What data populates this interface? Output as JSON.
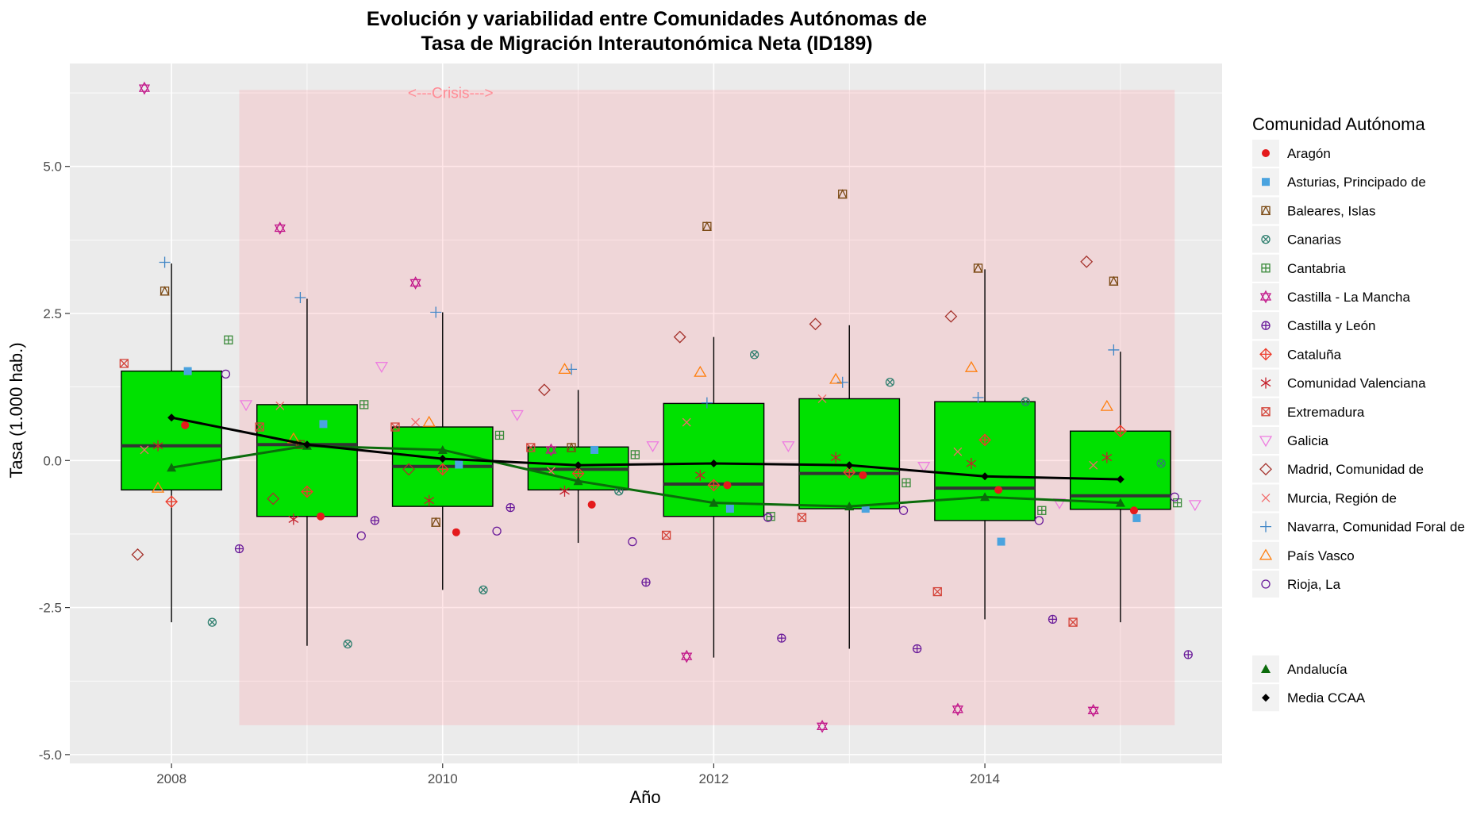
{
  "chart_data": {
    "type": "boxplot",
    "title_line1": "Evolución y variabilidad entre Comunidades Autónomas de",
    "title_line2": "Tasa de Migración Interautonómica Neta (ID189)",
    "xlabel": "Año",
    "ylabel": "Tasa (1.000 hab.)",
    "xlim": [
      2007.25,
      2015.75
    ],
    "ylim": [
      -5.15,
      6.75
    ],
    "x_ticks": [
      2008,
      2010,
      2012,
      2014
    ],
    "x_tick_labels": [
      "2008",
      "2010",
      "2012",
      "2014"
    ],
    "y_ticks": [
      -5,
      -2.5,
      0,
      2.5,
      5
    ],
    "y_tick_labels": [
      "-5.0",
      "-2.5",
      "0.0",
      "2.5",
      "5.0"
    ],
    "grid": true,
    "crisis_band": {
      "x": [
        2008.5,
        2015.4
      ],
      "y": [
        -4.5,
        6.3
      ],
      "label": "<---Crisis--->",
      "label_x": 2010.0,
      "label_y": 6.3
    },
    "boxes": [
      {
        "year": 2008,
        "q1": -0.5,
        "median": 0.25,
        "q3": 1.52,
        "whisker_low": -2.75,
        "whisker_high": 3.35
      },
      {
        "year": 2009,
        "q1": -0.95,
        "median": 0.27,
        "q3": 0.95,
        "whisker_low": -3.15,
        "whisker_high": 2.75
      },
      {
        "year": 2010,
        "q1": -0.78,
        "median": -0.1,
        "q3": 0.57,
        "whisker_low": -2.2,
        "whisker_high": 2.52
      },
      {
        "year": 2011,
        "q1": -0.5,
        "median": -0.15,
        "q3": 0.23,
        "whisker_low": -1.4,
        "whisker_high": 1.2
      },
      {
        "year": 2012,
        "q1": -0.95,
        "median": -0.4,
        "q3": 0.97,
        "whisker_low": -3.35,
        "whisker_high": 2.1
      },
      {
        "year": 2013,
        "q1": -0.82,
        "median": -0.22,
        "q3": 1.05,
        "whisker_low": -3.2,
        "whisker_high": 2.3
      },
      {
        "year": 2014,
        "q1": -1.02,
        "median": -0.47,
        "q3": 1.0,
        "whisker_low": -2.7,
        "whisker_high": 3.25
      },
      {
        "year": 2015,
        "q1": -0.83,
        "median": -0.6,
        "q3": 0.5,
        "whisker_low": -2.75,
        "whisker_high": 1.85
      }
    ],
    "box_fill": "#00e100",
    "series": [
      {
        "name": "Aragón",
        "shape": "circle-filled",
        "color": "#e41a1c",
        "x_offset": 0.1,
        "values": [
          0.6,
          -0.95,
          -1.22,
          -0.75,
          -0.42,
          -0.25,
          -0.5,
          -0.85
        ]
      },
      {
        "name": "Asturias, Principado de",
        "shape": "square-filled",
        "color": "#4aa3df",
        "x_offset": 0.12,
        "values": [
          1.52,
          0.62,
          -0.07,
          0.18,
          -0.82,
          -0.82,
          -1.38,
          -0.98
        ]
      },
      {
        "name": "Baleares, Islas",
        "shape": "square-triangle",
        "color": "#7b4a14",
        "x_offset": -0.05,
        "values": [
          2.88,
          0.27,
          -1.05,
          0.22,
          3.98,
          4.53,
          3.27,
          3.05
        ]
      },
      {
        "name": "Canarias",
        "shape": "circle-cross",
        "color": "#2f7f6f",
        "x_offset": 0.3,
        "values": [
          -2.75,
          -3.12,
          -2.2,
          -0.52,
          1.8,
          1.33,
          1.0,
          -0.05
        ]
      },
      {
        "name": "Cantabria",
        "shape": "square-plus",
        "color": "#3a8a3a",
        "x_offset": 0.42,
        "values": [
          2.05,
          0.95,
          0.43,
          0.1,
          -0.95,
          -0.38,
          -0.85,
          -0.72
        ]
      },
      {
        "name": "Castilla - La Mancha",
        "shape": "star-david",
        "color": "#c2178a",
        "x_offset": -0.2,
        "values": [
          6.33,
          3.95,
          3.02,
          0.18,
          -3.33,
          -4.52,
          -4.23,
          -4.25
        ]
      },
      {
        "name": "Castilla y León",
        "shape": "circle-plus",
        "color": "#6a1b9a",
        "x_offset": 0.5,
        "values": [
          -1.5,
          -1.02,
          -0.8,
          -2.07,
          -3.02,
          -3.2,
          -2.7,
          -3.3
        ]
      },
      {
        "name": "Cataluña",
        "shape": "diamond-plus",
        "color": "#ee3b2b",
        "x_offset": 0.0,
        "values": [
          -0.7,
          -0.53,
          -0.15,
          -0.22,
          -0.42,
          -0.2,
          0.35,
          0.5
        ]
      },
      {
        "name": "Comunidad Valenciana",
        "shape": "asterisk",
        "color": "#c41f2a",
        "x_offset": -0.1,
        "values": [
          0.25,
          -1.0,
          -0.68,
          -0.52,
          -0.25,
          0.05,
          -0.05,
          0.05
        ]
      },
      {
        "name": "Extremadura",
        "shape": "square-x",
        "color": "#d4443a",
        "x_offset": -0.35,
        "values": [
          1.65,
          0.57,
          0.57,
          0.22,
          -1.27,
          -0.97,
          -2.23,
          -2.75
        ]
      },
      {
        "name": "Galicia",
        "shape": "triangle-down",
        "color": "#ee7de0",
        "x_offset": 0.55,
        "values": [
          0.95,
          1.6,
          0.78,
          0.25,
          0.25,
          -0.1,
          -0.72,
          -0.75
        ]
      },
      {
        "name": "Madrid, Comunidad de",
        "shape": "diamond",
        "color": "#a5322c",
        "x_offset": -0.25,
        "values": [
          -1.6,
          -0.65,
          -0.15,
          1.2,
          2.1,
          2.32,
          2.45,
          3.38
        ]
      },
      {
        "name": "Murcia, Región de",
        "shape": "x",
        "color": "#f26a6a",
        "x_offset": -0.2,
        "values": [
          0.18,
          0.93,
          0.65,
          -0.18,
          0.65,
          1.05,
          0.15,
          -0.08
        ]
      },
      {
        "name": "Navarra, Comunidad Foral de",
        "shape": "plus",
        "color": "#3f85c6",
        "x_offset": -0.05,
        "values": [
          3.37,
          2.77,
          2.52,
          1.55,
          0.98,
          1.33,
          1.07,
          1.88
        ]
      },
      {
        "name": "País Vasco",
        "shape": "triangle-up",
        "color": "#ff7f0e",
        "x_offset": -0.1,
        "values": [
          -0.47,
          0.37,
          0.65,
          1.55,
          1.5,
          1.38,
          1.58,
          0.92
        ]
      },
      {
        "name": "Rioja, La",
        "shape": "circle-open",
        "color": "#6a1b9a",
        "x_offset": 0.4,
        "values": [
          1.47,
          -1.28,
          -1.2,
          -1.38,
          -0.97,
          -0.85,
          -1.02,
          -0.62
        ]
      },
      {
        "name": "Andalucía",
        "shape": "triangle-filled",
        "color": "#0b6b0b",
        "x_offset": 0,
        "line": true,
        "values": [
          -0.12,
          0.25,
          0.18,
          -0.35,
          -0.72,
          -0.78,
          -0.62,
          -0.72
        ]
      },
      {
        "name": "Media CCAA",
        "shape": "diamond-filled",
        "color": "#000000",
        "x_offset": 0,
        "line": true,
        "values": [
          0.73,
          0.27,
          0.03,
          -0.08,
          -0.05,
          -0.08,
          -0.27,
          -0.32
        ]
      }
    ],
    "legend_title": "Comunidad Autónoma",
    "legend_position": "right"
  }
}
